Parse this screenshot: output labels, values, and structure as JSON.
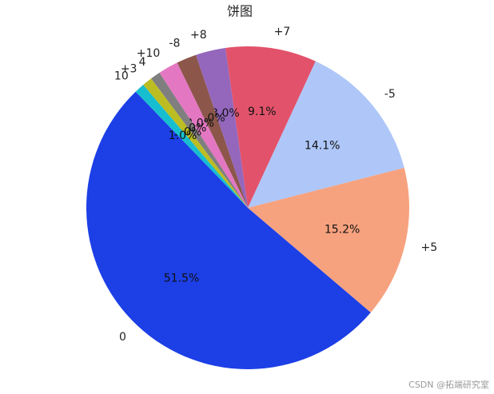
{
  "chart_data": {
    "type": "pie",
    "title": "饼图",
    "categories": [
      "0",
      "+5",
      "-5",
      "+7",
      "+8",
      "-8",
      "+10",
      "4",
      "+3",
      "10"
    ],
    "values": [
      51.5,
      15.2,
      14.1,
      9.1,
      3.0,
      2.0,
      2.0,
      1.0,
      1.0,
      1.0
    ],
    "value_labels": [
      "51.5%",
      "15.2%",
      "14.1%",
      "9.1%",
      "3.0%",
      "2.0%",
      "2.0%",
      "1.0%",
      "1.0%",
      "1.0%"
    ],
    "colors": [
      "#1c3fe6",
      "#f7a27f",
      "#aec7f8",
      "#e2536b",
      "#9467bd",
      "#8c564b",
      "#e377c2",
      "#7f7f7f",
      "#bcbd22",
      "#17becf"
    ]
  },
  "watermark": "CSDN @拓端研究室"
}
